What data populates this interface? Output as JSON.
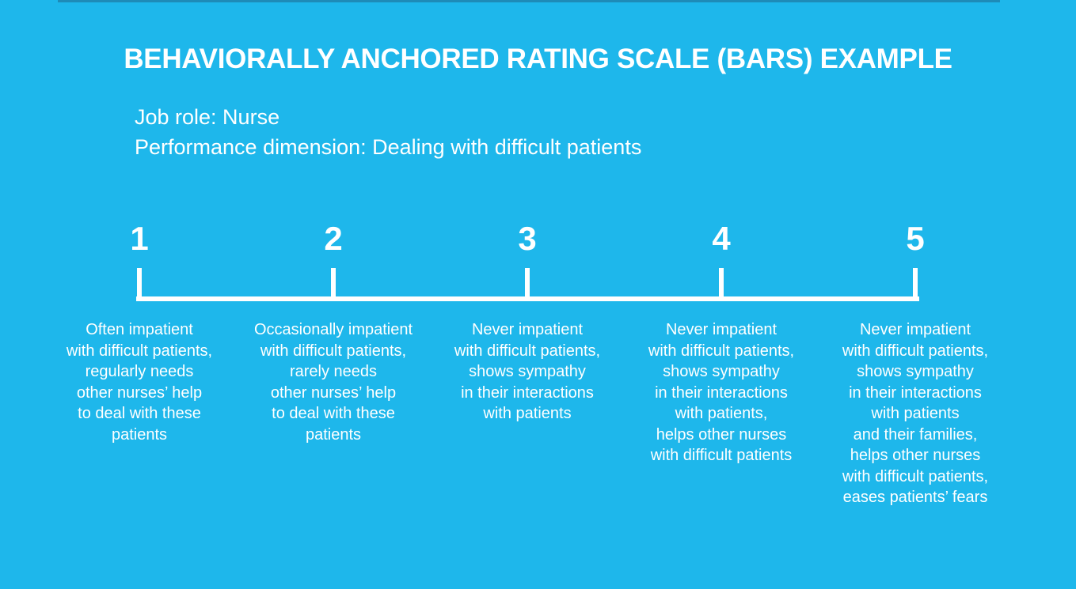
{
  "colors": {
    "background": "#1EB7EB",
    "top_border": "#1E8BB7",
    "text": "#FFFFFF",
    "scale_line": "#FFFFFF"
  },
  "title": "BEHAVIORALLY ANCHORED RATING SCALE (BARS) EXAMPLE",
  "subtitle": {
    "job_role": "Job role: Nurse",
    "performance_dimension": "Performance dimension: Dealing with difficult patients"
  },
  "scale": {
    "points": [
      {
        "value": "1",
        "description": "Often impatient\nwith difficult patients,\nregularly needs\nother nurses’ help\nto deal with these\npatients"
      },
      {
        "value": "2",
        "description": "Occasionally impatient\nwith difficult patients,\nrarely needs\nother nurses’ help\nto deal with these\npatients"
      },
      {
        "value": "3",
        "description": "Never impatient\nwith difficult patients,\nshows sympathy\nin their interactions\nwith patients"
      },
      {
        "value": "4",
        "description": "Never impatient\nwith difficult patients,\nshows sympathy\nin their interactions\nwith patients,\nhelps other nurses\nwith difficult patients"
      },
      {
        "value": "5",
        "description": "Never impatient\nwith difficult patients,\nshows sympathy\nin their interactions\nwith patients\nand their families,\nhelps other nurses\nwith difficult patients,\neases patients’ fears"
      }
    ]
  }
}
